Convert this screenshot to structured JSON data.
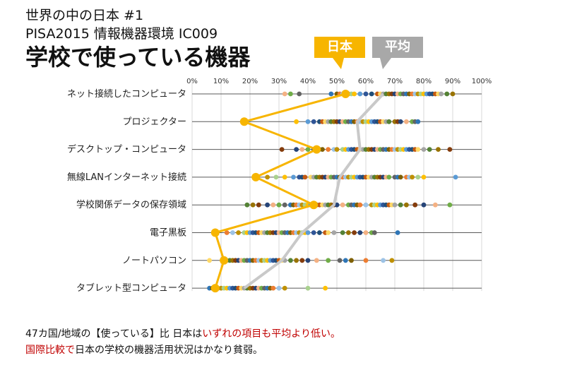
{
  "header": {
    "line1": "世界の中の日本 #1",
    "line2": "PISA2015 情報機器環境 IC009",
    "title": "学校で使っている機器"
  },
  "legend": {
    "japan_label": "日本",
    "avg_label": "平均",
    "japan_color": "#f7b500",
    "avg_color": "#a8a8a8"
  },
  "footer": {
    "line1_a": "47カ国/地域の【使っている】比 日本は",
    "line1_red": "いずれの項目も平均より低い。",
    "line2_red": "国際比較で",
    "line2_b": "日本の学校の機器活用状況はかなり貧弱。"
  },
  "chart_data": {
    "type": "scatter",
    "categories": [
      "ネット接続したコンピュータ",
      "プロジェクター",
      "デスクトップ・コンピュータ",
      "無線LANインターネット接続",
      "学校関係データの保存領域",
      "電子黒板",
      "ノートパソコン",
      "タブレット型コンピュータ"
    ],
    "x_ticks": [
      "0%",
      "10%",
      "20%",
      "30%",
      "40%",
      "50%",
      "60%",
      "70%",
      "80%",
      "90%",
      "100%"
    ],
    "xlim": [
      0,
      100
    ],
    "japan": [
      53,
      18,
      43,
      22,
      42,
      8,
      11,
      8
    ],
    "average": [
      66,
      57,
      58,
      51,
      49,
      38,
      31,
      18
    ],
    "countries": [
      [
        32,
        34,
        37,
        48,
        50,
        51,
        52,
        54,
        55,
        56,
        58,
        60,
        62,
        64,
        65,
        66,
        67,
        68,
        69,
        70,
        71,
        72,
        73,
        74,
        75,
        76,
        77,
        78,
        79,
        80,
        81,
        82,
        83,
        84,
        85,
        86,
        88,
        90
      ],
      [
        36,
        40,
        42,
        44,
        45,
        46,
        47,
        48,
        49,
        50,
        51,
        52,
        53,
        54,
        55,
        56,
        57,
        58,
        59,
        60,
        61,
        62,
        63,
        64,
        65,
        66,
        67,
        68,
        70,
        71,
        72,
        74,
        76,
        77,
        78
      ],
      [
        31,
        36,
        38,
        40,
        42,
        44,
        45,
        47,
        49,
        50,
        52,
        53,
        54,
        55,
        56,
        57,
        58,
        59,
        60,
        61,
        62,
        63,
        64,
        65,
        66,
        67,
        68,
        69,
        70,
        71,
        72,
        73,
        74,
        75,
        76,
        77,
        78,
        80,
        82,
        85,
        89
      ],
      [
        26,
        29,
        32,
        35,
        37,
        38,
        39,
        41,
        42,
        43,
        44,
        45,
        46,
        47,
        48,
        49,
        50,
        51,
        52,
        53,
        54,
        55,
        56,
        57,
        58,
        59,
        60,
        61,
        62,
        63,
        64,
        65,
        66,
        67,
        68,
        70,
        71,
        72,
        74,
        75,
        76,
        78,
        80,
        91
      ],
      [
        19,
        21,
        23,
        26,
        28,
        30,
        32,
        34,
        35,
        36,
        37,
        38,
        39,
        40,
        41,
        42,
        43,
        44,
        45,
        46,
        47,
        48,
        49,
        50,
        52,
        54,
        55,
        56,
        57,
        58,
        60,
        62,
        63,
        64,
        65,
        66,
        67,
        68,
        69,
        70,
        72,
        74,
        77,
        80,
        84,
        89
      ],
      [
        12,
        14,
        16,
        18,
        19,
        20,
        21,
        22,
        23,
        24,
        25,
        26,
        27,
        28,
        29,
        30,
        31,
        32,
        33,
        34,
        35,
        36,
        37,
        38,
        39,
        40,
        42,
        44,
        46,
        47,
        49,
        52,
        54,
        56,
        58,
        60,
        62,
        63,
        71
      ],
      [
        6,
        12,
        13,
        14,
        15,
        16,
        17,
        18,
        19,
        20,
        21,
        22,
        23,
        24,
        25,
        26,
        27,
        28,
        29,
        30,
        31,
        32,
        34,
        36,
        38,
        40,
        43,
        47,
        51,
        53,
        55,
        60,
        66,
        69
      ],
      [
        6,
        7,
        8,
        9,
        10,
        11,
        12,
        13,
        14,
        15,
        16,
        17,
        18,
        19,
        20,
        21,
        22,
        23,
        24,
        25,
        26,
        27,
        28,
        30,
        32,
        40,
        46
      ]
    ]
  }
}
